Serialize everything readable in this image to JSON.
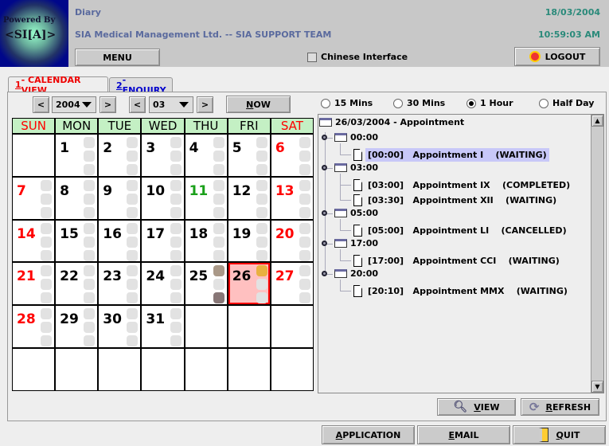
{
  "header": {
    "logo_text": [
      "Powered By",
      "<SI[A]>"
    ],
    "title": "Diary",
    "org": "SIA Medical Management Ltd. -- SIA SUPPORT TEAM",
    "date": "18/03/2004",
    "time": "10:59:03 AM",
    "menu": "MENU",
    "chinese": "Chinese Interface",
    "chinese_checked": false,
    "logout": "LOGOUT"
  },
  "tabs": [
    {
      "num": "1",
      "label": " - CALENDAR VIEW",
      "active": true
    },
    {
      "num": "2",
      "label": " - ENQUIRY",
      "active": false
    }
  ],
  "nav": {
    "prev": "<",
    "next": ">",
    "year": "2004",
    "month": "03",
    "now_u": "N",
    "now_rest": "OW"
  },
  "calendar": {
    "days": [
      "SUN",
      "MON",
      "TUE",
      "WED",
      "THU",
      "FRI",
      "SAT"
    ],
    "weeks": [
      [
        "",
        "1",
        "2",
        "3",
        "4",
        "5",
        "6"
      ],
      [
        "7",
        "8",
        "9",
        "10",
        "11",
        "12",
        "13"
      ],
      [
        "14",
        "15",
        "16",
        "17",
        "18",
        "19",
        "20"
      ],
      [
        "21",
        "22",
        "23",
        "24",
        "25",
        "26",
        "27"
      ],
      [
        "28",
        "29",
        "30",
        "31",
        "",
        "",
        ""
      ],
      [
        "",
        "",
        "",
        "",
        "",
        "",
        ""
      ]
    ],
    "selected": "26",
    "today": "11",
    "colors": {
      "weekend": "#ff0000",
      "today": "#1aa01a",
      "selected_bg": "#ffc0c0",
      "selected_border": "#ff0000"
    }
  },
  "intervals": {
    "options": [
      "15 Mins",
      "30 Mins",
      "1 Hour",
      "Half Day"
    ],
    "selected": "1 Hour"
  },
  "tree": {
    "root": "26/03/2004 - Appointment",
    "groups": [
      {
        "time": "00:00",
        "items": [
          {
            "text": "[00:00]   Appointment I    (WAITING)",
            "selected": true
          }
        ]
      },
      {
        "time": "03:00",
        "items": [
          {
            "text": "[03:00]   Appointment IX    (COMPLETED)"
          },
          {
            "text": "[03:30]   Appointment XII    (WAITING)"
          }
        ]
      },
      {
        "time": "05:00",
        "items": [
          {
            "text": "[05:00]   Appointment LI    (CANCELLED)"
          }
        ]
      },
      {
        "time": "17:00",
        "items": [
          {
            "text": "[17:00]   Appointment CCI    (WAITING)"
          }
        ]
      },
      {
        "time": "20:00",
        "items": [
          {
            "text": "[20:10]   Appointment MMX    (WAITING)"
          }
        ]
      }
    ]
  },
  "buttons": {
    "view_u": "V",
    "view_rest": "IEW",
    "refresh_u": "R",
    "refresh_rest": "EFRESH",
    "app_u": "A",
    "app_rest": "PPLICATION",
    "email_u": "E",
    "email_rest": "MAIL",
    "quit_u": "Q",
    "quit_rest": "UIT"
  }
}
